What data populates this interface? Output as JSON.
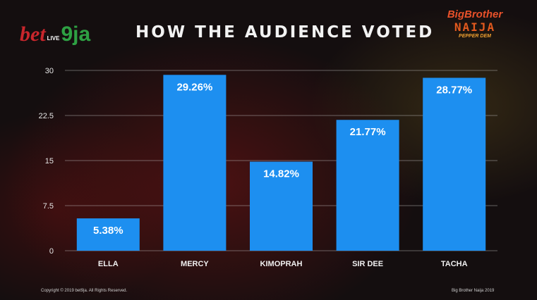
{
  "header": {
    "title": "HOW THE AUDIENCE VOTED",
    "left_logo": "bet9ja LIVE",
    "right_logo": "Big Brother NAIJA PEPPER DEM"
  },
  "footer": {
    "copyright": "Copyright © 2019 bet9ja. All Rights Reserved.",
    "right": "Big Brother Naija 2019"
  },
  "chart_data": {
    "type": "bar",
    "title": "HOW THE AUDIENCE VOTED",
    "categories": [
      "ELLA",
      "MERCY",
      "KIMOPRAH",
      "SIR DEE",
      "TACHA"
    ],
    "values": [
      5.38,
      29.26,
      14.82,
      21.77,
      28.77
    ],
    "data_labels": [
      "5.38%",
      "29.26%",
      "14.82%",
      "21.77%",
      "28.77%"
    ],
    "yticks": [
      "0",
      "7.5",
      "15",
      "22.5",
      "30"
    ],
    "ylim": [
      0,
      30
    ],
    "grid": true,
    "bar_color": "#1d8ff0",
    "xlabel": "",
    "ylabel": ""
  }
}
